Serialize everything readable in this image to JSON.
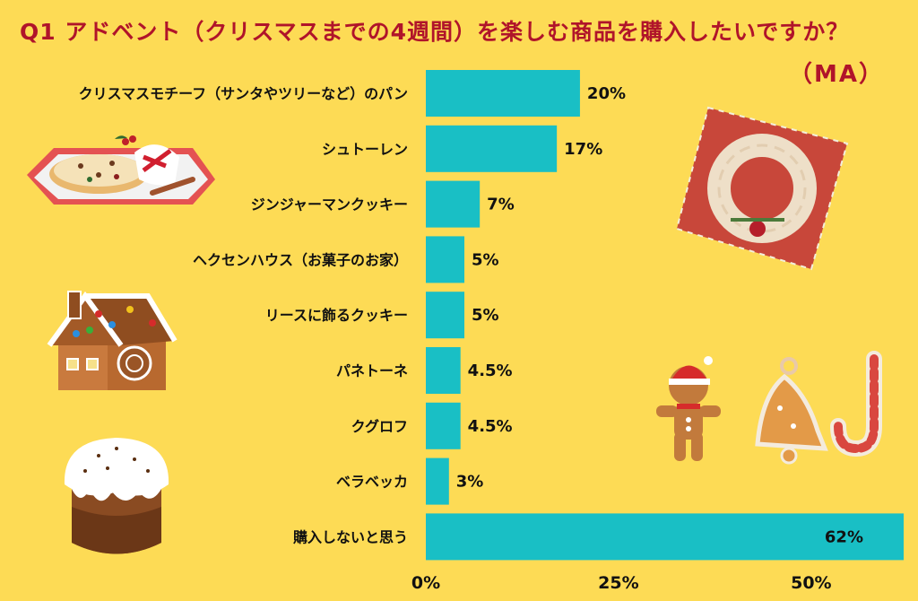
{
  "title": "Q1 アドベント（クリスマスまでの4週間）を楽しむ商品を購入したいですか？",
  "subtitle": "（MA）",
  "colors": {
    "background": "#FDDB55",
    "bar": "#19BFC5",
    "title": "#B0142A"
  },
  "chart_data": {
    "type": "bar",
    "orientation": "horizontal",
    "categories": [
      "クリスマスモチーフ（サンタやツリーなど）のパン",
      "シュトーレン",
      "ジンジャーマンクッキー",
      "ヘクセンハウス（お菓子のお家）",
      "リースに飾るクッキー",
      "パネトーネ",
      "クグロフ",
      "ベラベッカ",
      "購入しないと思う"
    ],
    "values": [
      20,
      17,
      7,
      5,
      5,
      4.5,
      4.5,
      3,
      62
    ],
    "value_labels": [
      "20%",
      "17%",
      "7%",
      "5%",
      "5%",
      "4.5%",
      "4.5%",
      "3%",
      "62%"
    ],
    "xticks": [
      "0%",
      "25%",
      "50%"
    ],
    "xlim": [
      0,
      62
    ],
    "grid": false,
    "legend": "none"
  },
  "illustrations": [
    "stollen-icon",
    "gingerbread-house-icon",
    "panettone-icon",
    "wreath-cookie-icon",
    "gingerbread-man-icon",
    "bell-cookie-icon",
    "candy-cane-cookie-icon"
  ]
}
